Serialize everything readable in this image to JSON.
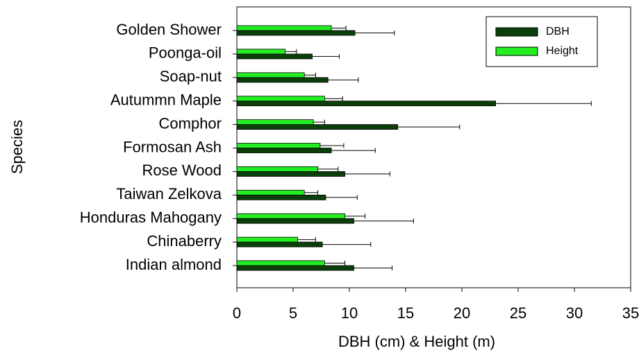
{
  "chart_data": {
    "type": "barh",
    "xlabel": "DBH (cm) & Height (m)",
    "ylabel": "Species",
    "categories": [
      "Golden Shower",
      "Poonga-oil",
      "Soap-nut",
      "Autummn Maple",
      "Comphor",
      "Formosan Ash",
      "Rose Wood",
      "Taiwan Zelkova",
      "Honduras Mahogany",
      "Chinaberry",
      "Indian almond"
    ],
    "series": [
      {
        "name": "DBH",
        "color": "#0a3f0a",
        "values": [
          10.5,
          6.7,
          8.1,
          23.0,
          14.3,
          8.4,
          9.6,
          7.9,
          10.4,
          7.6,
          10.4
        ],
        "errors": [
          3.5,
          2.4,
          2.7,
          8.5,
          5.5,
          3.9,
          4.0,
          2.8,
          5.3,
          4.3,
          3.4
        ]
      },
      {
        "name": "Height",
        "color": "#22ee22",
        "values": [
          8.4,
          4.3,
          6.0,
          7.8,
          6.8,
          7.4,
          7.2,
          6.0,
          9.6,
          5.4,
          7.8
        ],
        "errors": [
          1.3,
          1.0,
          1.0,
          1.6,
          1.0,
          2.1,
          1.8,
          1.2,
          1.8,
          1.6,
          1.8
        ]
      }
    ],
    "xlim": [
      0,
      35
    ],
    "xticks": [
      0,
      5,
      10,
      15,
      20,
      25,
      30,
      35
    ],
    "legend": "upper right"
  }
}
